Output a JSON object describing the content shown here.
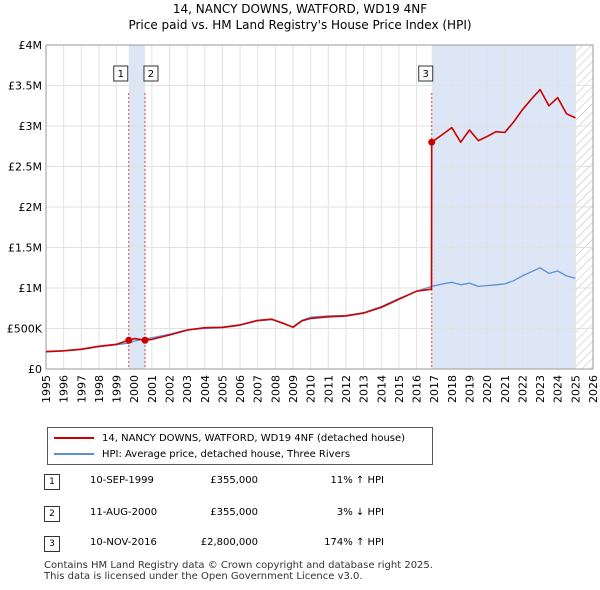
{
  "title_line1": "14, NANCY DOWNS, WATFORD, WD19 4NF",
  "title_line2": "Price paid vs. HM Land Registry's House Price Index (HPI)",
  "chart_data": {
    "type": "line",
    "title": "14, NANCY DOWNS, WATFORD, WD19 4NF — Price paid vs. HM Land Registry's House Price Index (HPI)",
    "xlim": [
      1995,
      2026
    ],
    "ylim": [
      0,
      4000000
    ],
    "yticks": [
      {
        "value": 0,
        "label": "£0"
      },
      {
        "value": 500000,
        "label": "£500K"
      },
      {
        "value": 1000000,
        "label": "£1M"
      },
      {
        "value": 1500000,
        "label": "£1.5M"
      },
      {
        "value": 2000000,
        "label": "£2M"
      },
      {
        "value": 2500000,
        "label": "£2.5M"
      },
      {
        "value": 3000000,
        "label": "£3M"
      },
      {
        "value": 3500000,
        "label": "£3.5M"
      },
      {
        "value": 4000000,
        "label": "£4M"
      }
    ],
    "xticks": [
      "1995",
      "1996",
      "1997",
      "1998",
      "1999",
      "2000",
      "2001",
      "2002",
      "2003",
      "2004",
      "2005",
      "2006",
      "2007",
      "2008",
      "2009",
      "2010",
      "2011",
      "2012",
      "2013",
      "2014",
      "2015",
      "2016",
      "2017",
      "2018",
      "2019",
      "2020",
      "2021",
      "2022",
      "2023",
      "2024",
      "2025",
      "2026"
    ],
    "shaded_ranges": [
      {
        "from": 1999.69,
        "to": 2000.61,
        "color": "#dce6f7"
      },
      {
        "from": 2016.86,
        "to": 2025.0,
        "color": "#dce6f7"
      }
    ],
    "future_hatch_from": 2025.0,
    "series": [
      {
        "name": "14, NANCY DOWNS, WATFORD, WD19 4NF (detached house)",
        "color": "#cc0000",
        "x": [
          1995.0,
          1996.0,
          1997.0,
          1998.0,
          1999.0,
          1999.69,
          2000.0,
          2000.61,
          2001.0,
          2002.0,
          2003.0,
          2004.0,
          2005.0,
          2006.0,
          2007.0,
          2007.8,
          2008.5,
          2009.0,
          2009.5,
          2010.0,
          2011.0,
          2012.0,
          2013.0,
          2014.0,
          2015.0,
          2016.0,
          2016.85,
          2016.86,
          2017.5,
          2018.0,
          2018.5,
          2019.0,
          2019.5,
          2020.0,
          2020.5,
          2021.0,
          2021.5,
          2022.0,
          2022.5,
          2023.0,
          2023.5,
          2024.0,
          2024.5,
          2025.0
        ],
        "y": [
          215000,
          225000,
          245000,
          280000,
          305000,
          355000,
          375000,
          355000,
          365000,
          420000,
          480000,
          510000,
          515000,
          545000,
          600000,
          615000,
          560000,
          515000,
          595000,
          625000,
          645000,
          655000,
          690000,
          760000,
          860000,
          960000,
          985000,
          2800000,
          2900000,
          2980000,
          2800000,
          2950000,
          2820000,
          2870000,
          2930000,
          2920000,
          3050000,
          3200000,
          3330000,
          3450000,
          3250000,
          3350000,
          3150000,
          3100000
        ]
      },
      {
        "name": "HPI: Average price, detached house, Three Rivers",
        "color": "#5b8fd4",
        "x": [
          1995.0,
          1996.0,
          1997.0,
          1998.0,
          1999.0,
          1999.69,
          2000.0,
          2000.61,
          2001.0,
          2002.0,
          2003.0,
          2004.0,
          2005.0,
          2006.0,
          2007.0,
          2007.8,
          2008.5,
          2009.0,
          2009.5,
          2010.0,
          2011.0,
          2012.0,
          2013.0,
          2014.0,
          2015.0,
          2016.0,
          2016.86,
          2017.5,
          2018.0,
          2018.5,
          2019.0,
          2019.5,
          2020.0,
          2020.5,
          2021.0,
          2021.5,
          2022.0,
          2022.5,
          2023.0,
          2023.5,
          2024.0,
          2024.5,
          2025.0
        ],
        "y": [
          210000,
          222000,
          240000,
          275000,
          300000,
          320000,
          345000,
          370000,
          385000,
          430000,
          485000,
          500000,
          510000,
          540000,
          595000,
          610000,
          555000,
          520000,
          600000,
          640000,
          655000,
          660000,
          695000,
          770000,
          870000,
          960000,
          1020000,
          1050000,
          1070000,
          1040000,
          1060000,
          1020000,
          1030000,
          1040000,
          1050000,
          1090000,
          1150000,
          1200000,
          1250000,
          1180000,
          1210000,
          1150000,
          1120000
        ]
      }
    ],
    "transactions": [
      {
        "num": "1",
        "x": 1999.69,
        "y": 355000
      },
      {
        "num": "2",
        "x": 2000.61,
        "y": 355000
      },
      {
        "num": "3",
        "x": 2016.86,
        "y": 2800000
      }
    ]
  },
  "legend": [
    {
      "label": "14, NANCY DOWNS, WATFORD, WD19 4NF (detached house)",
      "color": "#cc0000"
    },
    {
      "label": "HPI: Average price, detached house, Three Rivers",
      "color": "#5b8fd4"
    }
  ],
  "table": [
    {
      "num": "1",
      "date": "10-SEP-1999",
      "price": "£355,000",
      "hpi": "11% ↑ HPI"
    },
    {
      "num": "2",
      "date": "11-AUG-2000",
      "price": "£355,000",
      "hpi": "3% ↓ HPI"
    },
    {
      "num": "3",
      "date": "10-NOV-2016",
      "price": "£2,800,000",
      "hpi": "174% ↑ HPI"
    }
  ],
  "footer_line1": "Contains HM Land Registry data © Crown copyright and database right 2025.",
  "footer_line2": "This data is licensed under the Open Government Licence v3.0."
}
